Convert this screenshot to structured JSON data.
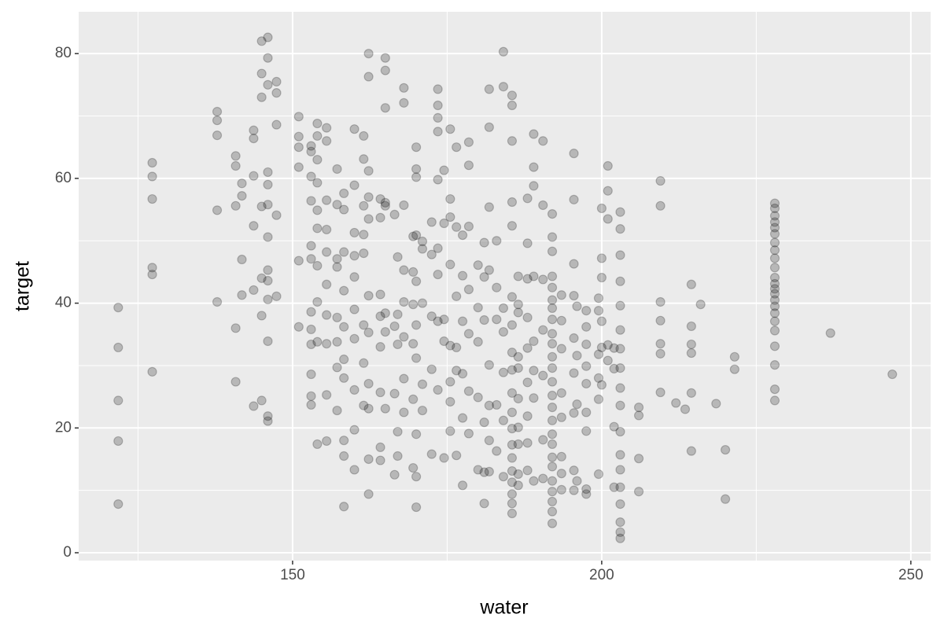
{
  "chart_data": {
    "type": "scatter",
    "xlabel": "water",
    "ylabel": "target",
    "xlim": [
      115.4,
      253.2
    ],
    "ylim": [
      -1.26,
      86.7
    ],
    "xticks": [
      150,
      200,
      250
    ],
    "yticks": [
      0,
      20,
      40,
      60,
      80
    ],
    "xminor": [
      125,
      175,
      225
    ],
    "yminor": [
      10,
      30,
      50,
      70
    ],
    "grid": true,
    "color": "#000000",
    "alpha": 0.22,
    "x": [
      121.8,
      121.8,
      121.8,
      121.8,
      121.8,
      127.3,
      127.3,
      127.3,
      127.3,
      127.3,
      127.3,
      137.8,
      137.8,
      137.8,
      137.8,
      137.8,
      140.8,
      140.8,
      140.8,
      140.8,
      140.8,
      141.8,
      141.8,
      141.8,
      141.8,
      143.7,
      143.7,
      143.7,
      143.7,
      143.7,
      143.7,
      145,
      145,
      145,
      145,
      145,
      145,
      145,
      146,
      146,
      146,
      146,
      146,
      146,
      146,
      146,
      146,
      146,
      146,
      146,
      146,
      147.4,
      147.4,
      147.4,
      147.4,
      147.4,
      151,
      151,
      151,
      151,
      151,
      151,
      153,
      153,
      153,
      153,
      153,
      153,
      153,
      153,
      153,
      153,
      153,
      153,
      154,
      154,
      154,
      154,
      154,
      154,
      154,
      154,
      154,
      154,
      155.5,
      155.5,
      155.5,
      155.5,
      155.5,
      155.5,
      155.5,
      155.5,
      155.5,
      155.5,
      157.2,
      157.2,
      157.2,
      157.2,
      157.2,
      157.2,
      157.2,
      157.2,
      158.3,
      158.3,
      158.3,
      158.3,
      158.3,
      158.3,
      158.3,
      158.3,
      158.3,
      158.3,
      160,
      160,
      160,
      160,
      160,
      160,
      160,
      160,
      160,
      160,
      161.5,
      161.5,
      161.5,
      161.5,
      161.5,
      161.5,
      161.5,
      161.5,
      162.3,
      162.3,
      162.3,
      162.3,
      162.3,
      162.3,
      162.3,
      162.3,
      162.3,
      162.3,
      162.3,
      164.2,
      164.2,
      164.2,
      164.2,
      164.2,
      164.2,
      164.2,
      164.2,
      165,
      165,
      165,
      165,
      165,
      165,
      165,
      165,
      166.5,
      166.5,
      166.5,
      166.5,
      167,
      167,
      167,
      167,
      167,
      168,
      168,
      168,
      168,
      168,
      168,
      168,
      168,
      169.5,
      169.5,
      169.5,
      169.5,
      169.5,
      169.5,
      170,
      170,
      170,
      170,
      170,
      170,
      170,
      170,
      170,
      170,
      171,
      171,
      171,
      171,
      171,
      172.5,
      172.5,
      172.5,
      172.5,
      172.5,
      173.5,
      173.5,
      173.5,
      173.5,
      173.5,
      173.5,
      173.5,
      173.5,
      173.5,
      174.5,
      174.5,
      174.5,
      174.5,
      174.5,
      175.5,
      175.5,
      175.5,
      175.5,
      175.5,
      175.5,
      175.5,
      175.5,
      176.5,
      176.5,
      176.5,
      176.5,
      176.5,
      176.5,
      177.5,
      177.5,
      177.5,
      177.5,
      177.5,
      177.5,
      178.5,
      178.5,
      178.5,
      178.5,
      178.5,
      178.5,
      178.5,
      180,
      180,
      180,
      180,
      180,
      181,
      181,
      181,
      181,
      181,
      181,
      181.8,
      181.8,
      181.8,
      181.8,
      181.8,
      181.8,
      181.8,
      181.8,
      183,
      183,
      183,
      183,
      183,
      184.1,
      184.1,
      184.1,
      184.1,
      184.1,
      184.1,
      184.1,
      185.5,
      185.5,
      185.5,
      185.5,
      185.5,
      185.5,
      185.5,
      185.5,
      185.5,
      185.5,
      185.5,
      185.5,
      185.5,
      185.5,
      185.5,
      185.5,
      185.5,
      185.5,
      185.5,
      186.5,
      186.5,
      186.5,
      186.5,
      186.5,
      186.5,
      186.5,
      186.5,
      186.5,
      186.5,
      188,
      188,
      188,
      188,
      188,
      188,
      188,
      188,
      188,
      189,
      189,
      189,
      189,
      189,
      189,
      189,
      189,
      190.5,
      190.5,
      190.5,
      190.5,
      190.5,
      190.5,
      190.5,
      192,
      192,
      192,
      192,
      192,
      192,
      192,
      192,
      192,
      192,
      192,
      192,
      192,
      192,
      192,
      192,
      192,
      192,
      192,
      192,
      192,
      192,
      192,
      192,
      192,
      193.5,
      193.5,
      193.5,
      193.5,
      193.5,
      193.5,
      193.5,
      193.5,
      195.5,
      195.5,
      195.5,
      195.5,
      195.5,
      195.5,
      195.5,
      195.5,
      195.5,
      196,
      196,
      196,
      196,
      197.5,
      197.5,
      197.5,
      197.5,
      197.5,
      197.5,
      197.5,
      197.5,
      197.5,
      199.5,
      199.5,
      199.5,
      199.5,
      199.5,
      199.5,
      200,
      200,
      200,
      200,
      200,
      200,
      201,
      201,
      201,
      201,
      201,
      202,
      202,
      202,
      202,
      203,
      203,
      203,
      203,
      203,
      203,
      203,
      203,
      203,
      203,
      203,
      203,
      203,
      203,
      203,
      203,
      203,
      203,
      206,
      206,
      206,
      206,
      209.5,
      209.5,
      209.5,
      209.5,
      209.5,
      209.5,
      209.5,
      212,
      213.5,
      214.5,
      214.5,
      214.5,
      214.5,
      214.5,
      214.5,
      216,
      218.5,
      220,
      220,
      221.5,
      221.5,
      228,
      228,
      228,
      228,
      228,
      228,
      228,
      228,
      228,
      228,
      228,
      228,
      228,
      228,
      228,
      228,
      228,
      228,
      228,
      228,
      228,
      228,
      228,
      237,
      247
    ],
    "values": [
      39.3,
      32.9,
      24.4,
      17.9,
      7.8,
      62.5,
      60.3,
      56.7,
      45.7,
      44.6,
      29.0,
      70.7,
      69.3,
      66.9,
      54.9,
      40.2,
      63.6,
      62,
      55.6,
      36,
      27.4,
      59.2,
      57.2,
      47,
      41.3,
      67.7,
      66.4,
      60.4,
      52.4,
      42.1,
      23.5,
      82,
      76.8,
      73,
      55.5,
      44,
      38,
      24.4,
      82.6,
      79.3,
      75,
      61,
      59,
      55.8,
      50.6,
      45.3,
      43.6,
      40.6,
      33.9,
      21.9,
      21.1,
      75.5,
      73.7,
      68.6,
      54.1,
      41.1,
      69.9,
      66.7,
      65,
      61.8,
      46.8,
      36.2,
      65.2,
      64.3,
      60.3,
      56.4,
      49.2,
      47.1,
      38.6,
      35.8,
      33.4,
      28.6,
      25.1,
      23.7,
      68.8,
      66.8,
      63,
      59.3,
      54.9,
      52,
      46,
      40.2,
      33.8,
      17.4,
      68.1,
      66,
      56.5,
      51.8,
      48.2,
      43,
      38.1,
      33.5,
      25.3,
      17.9,
      61.5,
      55.8,
      47.1,
      45.8,
      37.7,
      33.8,
      29.7,
      22.8,
      57.6,
      55,
      48.2,
      42,
      36.2,
      31,
      28,
      18,
      15.5,
      7.4,
      67.9,
      58.9,
      51.3,
      47.6,
      44.2,
      39,
      34.3,
      26.1,
      19.7,
      13.3,
      66.8,
      63.1,
      55.6,
      51,
      48,
      36.5,
      30.4,
      23.6,
      80,
      76.3,
      61.2,
      57,
      53.5,
      41.2,
      35.3,
      27.1,
      23.1,
      15,
      9.4,
      56.7,
      53.7,
      41.4,
      37.9,
      33,
      25.7,
      16.9,
      14.8,
      79.3,
      77.3,
      71.3,
      56.1,
      55.6,
      38.4,
      35.4,
      23.1,
      54.2,
      36.3,
      25.5,
      12.5,
      47.4,
      38.2,
      33.4,
      19.4,
      15.5,
      74.5,
      72.1,
      55.7,
      45.3,
      40.2,
      34.6,
      27.9,
      22.5,
      50.7,
      45,
      39.8,
      33.5,
      24.6,
      13.6,
      65,
      61.5,
      60.2,
      50.9,
      43.5,
      36.5,
      31.2,
      19,
      12.2,
      7.3,
      48.7,
      49.9,
      40,
      27,
      22.8,
      53,
      47.8,
      37.9,
      29.4,
      15.8,
      74.3,
      71.7,
      69.7,
      67.5,
      59.8,
      48.8,
      44.6,
      37.1,
      26.1,
      61.3,
      52.8,
      37.4,
      33.9,
      15.2,
      67.9,
      56.7,
      53.8,
      46.2,
      33.2,
      27.4,
      24.2,
      19.5,
      65,
      52.2,
      41.1,
      32.9,
      29.2,
      15.6,
      50.9,
      44.4,
      37.1,
      28.7,
      21.6,
      10.8,
      65.8,
      62.1,
      52.3,
      42.2,
      35.1,
      25.9,
      19.1,
      46.1,
      39.3,
      33.8,
      24.9,
      13.3,
      49.7,
      44.2,
      37.3,
      20.9,
      12.9,
      7.9,
      74.3,
      68.2,
      55.4,
      45.3,
      30.1,
      23.6,
      18,
      13,
      50,
      42.5,
      37.4,
      23.7,
      16.3,
      80.3,
      74.7,
      39.2,
      35.4,
      28.9,
      21.2,
      12.2,
      73.3,
      71.7,
      66,
      56.2,
      52.4,
      41,
      36.5,
      32.1,
      29.3,
      25.6,
      22.5,
      19.9,
      17.3,
      15.2,
      13.1,
      11.3,
      9.4,
      7.9,
      6.3,
      44.3,
      39.8,
      38.5,
      31.4,
      29.6,
      24.7,
      20.1,
      17.4,
      12.6,
      10.8,
      56.8,
      49.6,
      43.9,
      37.7,
      32.8,
      27.3,
      21.9,
      17.6,
      13.2,
      67.1,
      61.8,
      58.8,
      44.3,
      33.9,
      29.2,
      24.8,
      11.5,
      66,
      55.7,
      43.8,
      35.7,
      28.4,
      18.1,
      11.9,
      54.3,
      50.6,
      48.3,
      44.3,
      42.5,
      40.5,
      39.2,
      37.4,
      35.1,
      33.5,
      31.4,
      29.6,
      27.4,
      25.2,
      23.3,
      21.2,
      19,
      17.4,
      15.3,
      13.8,
      11.5,
      9.8,
      8.2,
      6.6,
      4.7,
      41.3,
      37.2,
      32.7,
      25.6,
      21.7,
      15.4,
      12.7,
      10.1,
      64,
      56.6,
      46.3,
      41.2,
      34.4,
      28.8,
      22.4,
      13.2,
      10,
      39.5,
      31.6,
      23.8,
      11.5,
      38.8,
      36.2,
      33.4,
      29.9,
      27.1,
      22.5,
      19.5,
      10.2,
      9.4,
      40.8,
      38.8,
      31.8,
      28,
      24.6,
      12.6,
      55.2,
      47.2,
      44.1,
      37.1,
      32.9,
      26.9,
      62,
      58,
      53.5,
      33.3,
      30.8,
      32.8,
      29.5,
      20.2,
      10.5,
      54.6,
      51.9,
      47.7,
      43.5,
      39.6,
      35.7,
      32.7,
      29.6,
      26.4,
      23.6,
      19.4,
      15.7,
      13.3,
      10.5,
      7.8,
      4.9,
      3.3,
      2.3,
      23.3,
      22,
      15.1,
      9.8,
      59.6,
      55.6,
      40.2,
      37.2,
      33.5,
      31.9,
      25.7,
      24,
      23,
      43,
      36.3,
      33.4,
      32,
      25.6,
      16.3,
      39.8,
      23.9,
      16.5,
      8.6,
      31.4,
      29.4,
      56,
      55.2,
      54,
      53,
      52.1,
      51.1,
      49.7,
      48.5,
      47.2,
      45.7,
      44.1,
      43.1,
      42.3,
      41.5,
      40.5,
      39.5,
      38.4,
      37.1,
      35.6,
      33.1,
      30.1,
      26.2,
      24.4,
      35.2,
      28.6
    ]
  }
}
